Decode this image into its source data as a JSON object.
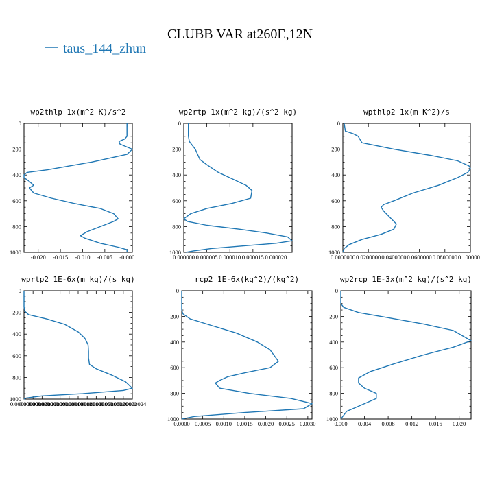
{
  "figure": {
    "title": "CLUBB VAR at260E,12N",
    "legend": {
      "label": "taus_144_zhun",
      "color": "#1f77b4"
    }
  },
  "chart_data": [
    {
      "type": "line",
      "title": "wp2thlp   1x(m^2 K)/s^2",
      "xticks": [
        "-0.020",
        "-0.015",
        "-0.010",
        "-0.005",
        "-0.000"
      ],
      "xtick_values": [
        -0.02,
        -0.015,
        -0.01,
        -0.005,
        0.0
      ],
      "xlim": [
        -0.0232,
        0.0012
      ],
      "yticks": [
        "0",
        "200",
        "400",
        "600",
        "800",
        "1000"
      ],
      "ylim": [
        0,
        1000
      ],
      "y_inverted": true,
      "series": [
        {
          "name": "taus_144_zhun",
          "x": [
            0.0,
            0.0,
            -0.0005,
            -0.0018,
            -0.0016,
            0.0012,
            0.0,
            -0.008,
            -0.018,
            -0.0225,
            -0.0232,
            -0.0232,
            -0.022,
            -0.021,
            -0.022,
            -0.021,
            -0.017,
            -0.012,
            -0.006,
            -0.003,
            -0.002,
            -0.003,
            -0.006,
            -0.009,
            -0.0105,
            -0.0095,
            -0.006,
            -0.002,
            0.0,
            0.0
          ],
          "y": [
            0,
            100,
            120,
            140,
            160,
            200,
            240,
            300,
            360,
            380,
            400,
            420,
            450,
            480,
            500,
            540,
            580,
            620,
            660,
            700,
            740,
            760,
            800,
            840,
            870,
            890,
            930,
            960,
            980,
            1000
          ]
        }
      ]
    },
    {
      "type": "line",
      "title": "wp2rtp   1x(m^2 kg)/(s^2 kg)",
      "xticks": [
        "0.000000",
        "0.000005",
        "0.000010",
        "0.000015",
        "0.000020"
      ],
      "xtick_values": [
        0.0,
        5e-06,
        1e-05,
        1.5e-05,
        2e-05
      ],
      "xlim": [
        0.0,
        2.35e-05
      ],
      "yticks": [
        "0",
        "200",
        "400",
        "600",
        "800",
        "1000"
      ],
      "ylim": [
        0,
        1000
      ],
      "y_inverted": true,
      "series": [
        {
          "name": "taus_144_zhun",
          "x": [
            1e-06,
            1e-06,
            1.2e-06,
            2.5e-06,
            3.5e-06,
            5e-06,
            7.5e-06,
            1.05e-05,
            1.35e-05,
            1.48e-05,
            1.45e-05,
            1.05e-05,
            5e-06,
            1.5e-06,
            0.0,
            8e-07,
            5e-06,
            1.2e-05,
            1.8e-05,
            2.25e-05,
            2.35e-05,
            2e-05,
            1.3e-05,
            6e-06,
            2e-06,
            5e-07
          ],
          "y": [
            0,
            100,
            140,
            200,
            280,
            320,
            380,
            430,
            480,
            520,
            580,
            620,
            660,
            700,
            740,
            760,
            790,
            820,
            850,
            880,
            910,
            930,
            950,
            970,
            990,
            1000
          ]
        }
      ]
    },
    {
      "type": "line",
      "title": "wpthlp2   1x(m K^2)/s",
      "xticks": [
        "0.0000000",
        "0.0200000",
        "0.0400000",
        "0.0600000",
        "0.0800000",
        "0.1000000"
      ],
      "xtick_values": [
        0.0,
        0.02,
        0.04,
        0.06,
        0.08,
        0.1
      ],
      "xlim": [
        0.0,
        0.1
      ],
      "yticks": [
        "0",
        "200",
        "400",
        "600",
        "800",
        "1000"
      ],
      "ylim": [
        0,
        1000
      ],
      "y_inverted": true,
      "series": [
        {
          "name": "taus_144_zhun",
          "x": [
            0.001,
            0.002,
            0.008,
            0.012,
            0.015,
            0.04,
            0.07,
            0.09,
            0.099,
            0.1,
            0.098,
            0.09,
            0.075,
            0.055,
            0.04,
            0.032,
            0.03,
            0.032,
            0.038,
            0.042,
            0.04,
            0.03,
            0.015,
            0.005,
            0.001,
            0.0
          ],
          "y": [
            0,
            60,
            80,
            100,
            150,
            200,
            250,
            290,
            330,
            350,
            380,
            420,
            480,
            540,
            600,
            630,
            650,
            680,
            740,
            780,
            820,
            860,
            900,
            940,
            970,
            1000
          ]
        }
      ]
    },
    {
      "type": "line",
      "title": "wprtp2   1E-6x(m kg)/(s kg)",
      "xticks": [
        "0.00000000",
        "0.00000002",
        "0.00000004",
        "0.00000006",
        "0.00000008",
        "0.00000010",
        "0.00000012",
        "0.00000014",
        "0.00000016",
        "0.00000018",
        "0.00000020",
        "0.00000022",
        "0.00000024"
      ],
      "xtick_values": [
        0.0,
        2e-08,
        4e-08,
        6e-08,
        8e-08,
        1e-07,
        1.2e-07,
        1.4e-07,
        1.6e-07,
        1.8e-07,
        2e-07,
        2.2e-07,
        2.4e-07
      ],
      "xlim": [
        0.0,
        2.4e-07
      ],
      "yticks": [
        "0",
        "200",
        "400",
        "600",
        "800",
        "1000"
      ],
      "ylim": [
        0,
        1000
      ],
      "y_inverted": true,
      "series": [
        {
          "name": "taus_144_zhun",
          "x": [
            0.0,
            0.0,
            2e-09,
            1e-08,
            5e-08,
            9e-08,
            1.2e-07,
            1.35e-07,
            1.42e-07,
            1.43e-07,
            1.43e-07,
            1.45e-07,
            1.6e-07,
            1.95e-07,
            2.25e-07,
            2.4e-07,
            2.2e-07,
            1.3e-07,
            4e-08,
            5e-09,
            0.0
          ],
          "y": [
            0,
            150,
            190,
            220,
            260,
            310,
            380,
            440,
            500,
            560,
            620,
            680,
            720,
            780,
            840,
            900,
            920,
            950,
            970,
            990,
            1000
          ]
        }
      ]
    },
    {
      "type": "line",
      "title": "rcp2   1E-6x(kg^2)/(kg^2)",
      "xticks": [
        "0.0000",
        "0.0005",
        "0.0010",
        "0.0015",
        "0.0020",
        "0.0025",
        "0.0030"
      ],
      "xtick_values": [
        0.0,
        0.0005,
        0.001,
        0.0015,
        0.002,
        0.0025,
        0.003
      ],
      "xlim": [
        0.0,
        0.0031
      ],
      "yticks": [
        "0",
        "200",
        "400",
        "600",
        "800",
        "1000"
      ],
      "ylim": [
        0,
        1000
      ],
      "y_inverted": true,
      "series": [
        {
          "name": "taus_144_zhun",
          "x": [
            0.0,
            0.0,
            3e-05,
            0.0002,
            0.0007,
            0.0013,
            0.0018,
            0.0021,
            0.0023,
            0.0021,
            0.0015,
            0.0011,
            0.0009,
            0.0008,
            0.0009,
            0.0016,
            0.0026,
            0.0031,
            0.0029,
            0.0015,
            0.0003,
            0.0
          ],
          "y": [
            0,
            150,
            180,
            220,
            270,
            330,
            400,
            460,
            550,
            600,
            640,
            670,
            700,
            720,
            760,
            800,
            840,
            880,
            920,
            950,
            980,
            1000
          ]
        }
      ]
    },
    {
      "type": "line",
      "title": "wp2rcp   1E-3x(m^2 kg)/(s^2 kg)",
      "xticks": [
        "0.000",
        "0.004",
        "0.008",
        "0.012",
        "0.016",
        "0.020"
      ],
      "xtick_values": [
        0.0,
        0.004,
        0.008,
        0.012,
        0.016,
        0.02
      ],
      "xlim": [
        0.0,
        0.022
      ],
      "yticks": [
        "0",
        "200",
        "400",
        "600",
        "800",
        "1000"
      ],
      "ylim": [
        0,
        1000
      ],
      "y_inverted": true,
      "series": [
        {
          "name": "taus_144_zhun",
          "x": [
            0.0,
            0.0,
            0.0005,
            0.003,
            0.008,
            0.014,
            0.019,
            0.022,
            0.019,
            0.014,
            0.009,
            0.005,
            0.003,
            0.003,
            0.004,
            0.006,
            0.006,
            0.004,
            0.001,
            0.0
          ],
          "y": [
            0,
            100,
            130,
            170,
            210,
            260,
            310,
            390,
            440,
            500,
            570,
            630,
            680,
            720,
            760,
            800,
            840,
            880,
            940,
            1000
          ]
        }
      ]
    }
  ]
}
